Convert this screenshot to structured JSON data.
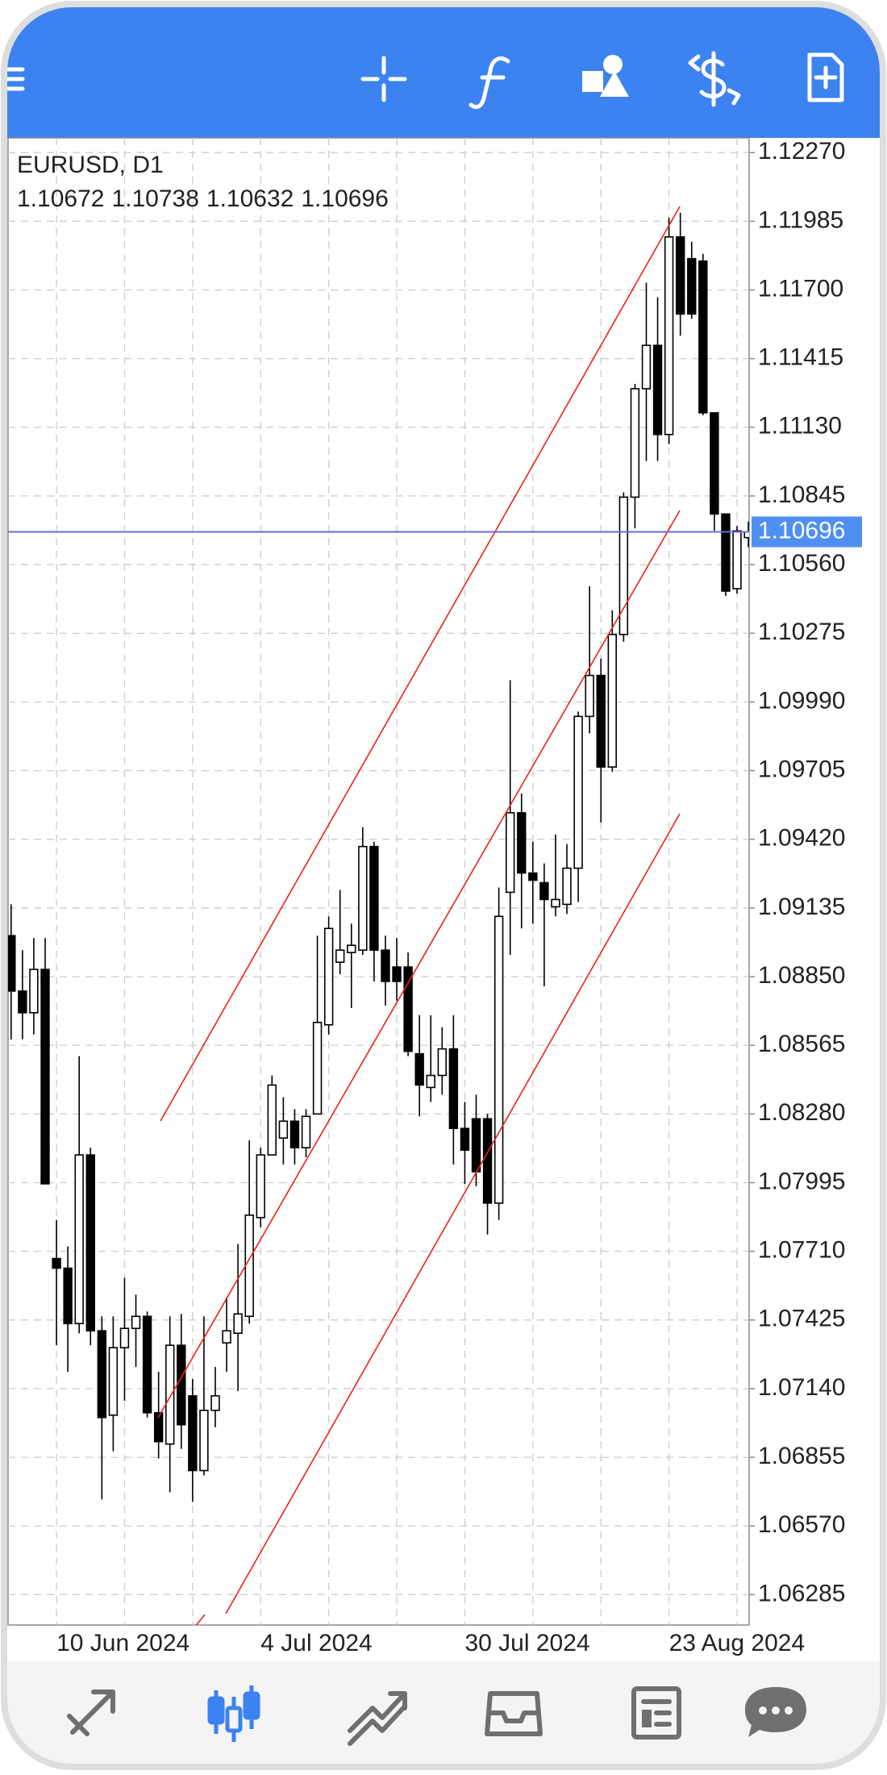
{
  "chart_data": {
    "type": "candlestick",
    "title": "EURUSD, D1",
    "categories": [
      null,
      null,
      null,
      null,
      "10 Jun 2024",
      null,
      null,
      null,
      null,
      null,
      null,
      null,
      null,
      null,
      null,
      null,
      null,
      null,
      null,
      null,
      null,
      null,
      "4 Jul 2024",
      null,
      null,
      null,
      null,
      null,
      null,
      null,
      null,
      null,
      null,
      null,
      null,
      null,
      null,
      null,
      null,
      null,
      "30 Jul 2024",
      null,
      null,
      null,
      null,
      null,
      null,
      null,
      null,
      null,
      null,
      null,
      null,
      null,
      null,
      null,
      null,
      null,
      "23 Aug 2024",
      null,
      null,
      null,
      null,
      null,
      null,
      null
    ],
    "open": [
      1.0902,
      1.0879,
      1.087,
      1.0888,
      1.0768,
      1.0764,
      1.0741,
      1.0811,
      1.0738,
      1.0703,
      1.0731,
      1.0739,
      1.0744,
      1.0704,
      1.0691,
      1.0732,
      1.0711,
      1.068,
      1.0705,
      1.0733,
      1.0737,
      1.0744,
      1.0785,
      1.0811,
      1.0818,
      1.0825,
      1.0814,
      1.0828,
      1.0865,
      1.0891,
      1.0895,
      1.0896,
      1.0939,
      1.0896,
      1.0889,
      1.0889,
      1.0853,
      1.0839,
      1.0844,
      1.0855,
      1.0822,
      1.0826,
      1.0826,
      1.0791,
      1.092,
      1.0953,
      1.0928,
      1.0924,
      1.0914,
      1.0915,
      1.093,
      1.0993,
      1.101,
      1.0972,
      1.1027,
      1.1084,
      1.1129,
      1.1147,
      1.111,
      1.1192,
      1.1183,
      1.1182,
      1.1119,
      1.1077,
      1.1046,
      1.10672
    ],
    "high": [
      1.0915,
      1.0896,
      1.0901,
      1.0901,
      1.0784,
      1.0773,
      1.0852,
      1.0814,
      1.0744,
      1.0744,
      1.076,
      1.0753,
      1.0746,
      1.0721,
      1.0744,
      1.0745,
      1.0718,
      1.0744,
      1.0723,
      1.0752,
      1.0774,
      1.0817,
      1.0814,
      1.0844,
      1.0835,
      1.083,
      1.083,
      1.0902,
      1.091,
      1.0921,
      1.0907,
      1.0947,
      1.0941,
      1.0902,
      1.0901,
      1.0895,
      1.0869,
      1.0869,
      1.0864,
      1.0869,
      1.0833,
      1.0836,
      1.0828,
      1.0922,
      1.1008,
      1.0961,
      1.0941,
      1.0932,
      1.0944,
      1.094,
      1.0995,
      1.1047,
      1.1017,
      1.1037,
      1.1086,
      1.1131,
      1.1173,
      1.1167,
      1.12,
      1.1202,
      1.119,
      1.1185,
      1.1119,
      1.1077,
      1.1072,
      1.10738
    ],
    "low": [
      1.0859,
      1.0859,
      1.0861,
      1.0799,
      1.0732,
      1.0721,
      1.0737,
      1.0732,
      1.0668,
      1.0688,
      1.0709,
      1.0723,
      1.0702,
      1.0685,
      1.0671,
      1.0689,
      1.0667,
      1.0678,
      1.0698,
      1.0721,
      1.0713,
      1.0741,
      1.0781,
      1.0811,
      1.0807,
      1.0807,
      1.081,
      1.0828,
      1.0861,
      1.0886,
      1.0872,
      1.0894,
      1.0883,
      1.0873,
      1.0875,
      1.0852,
      1.0827,
      1.0833,
      1.0836,
      1.0807,
      1.0799,
      1.0798,
      1.0778,
      1.0784,
      1.0894,
      1.0905,
      1.0907,
      1.0881,
      1.091,
      1.0911,
      1.0916,
      1.0986,
      1.0949,
      1.097,
      1.1024,
      1.1071,
      1.1099,
      1.1099,
      1.1106,
      1.1151,
      1.1158,
      1.1118,
      1.107,
      1.1043,
      1.1044,
      1.10632
    ],
    "close": [
      1.0879,
      1.087,
      1.0888,
      1.0799,
      1.0764,
      1.0741,
      1.0811,
      1.0738,
      1.0702,
      1.0731,
      1.0739,
      1.0744,
      1.0704,
      1.0692,
      1.0732,
      1.0699,
      1.068,
      1.0705,
      1.0711,
      1.0738,
      1.0745,
      1.0786,
      1.0811,
      1.084,
      1.0825,
      1.0814,
      1.0827,
      1.0866,
      1.0905,
      1.0896,
      1.0898,
      1.0939,
      1.0896,
      1.0883,
      1.0883,
      1.0854,
      1.084,
      1.0844,
      1.0855,
      1.0822,
      1.0813,
      1.0804,
      1.0791,
      1.091,
      1.0953,
      1.0928,
      1.0925,
      1.0917,
      1.0917,
      1.093,
      1.0993,
      1.101,
      1.0972,
      1.1027,
      1.1084,
      1.1129,
      1.1147,
      1.111,
      1.1192,
      1.116,
      1.116,
      1.1119,
      1.1077,
      1.1045,
      1.107,
      1.10696
    ],
    "ylim": [
      1.06159,
      1.12331
    ],
    "yticks": [
      {
        "value": 1.1227,
        "label": "1.12270"
      },
      1.11985,
      {
        "value": 1.117,
        "label": "1.11700"
      },
      1.11415,
      {
        "value": 1.1113,
        "label": "1.11130"
      },
      1.10845,
      {
        "value": 1.1056,
        "label": "1.10560"
      },
      1.10275,
      {
        "value": 1.0999,
        "label": "1.09990"
      },
      1.09705,
      {
        "value": 1.0942,
        "label": "1.09420"
      },
      1.09135,
      {
        "value": 1.0885,
        "label": "1.08850"
      },
      1.08565,
      {
        "value": 1.0828,
        "label": "1.08280"
      },
      1.07995,
      {
        "value": 1.0771,
        "label": "1.07710"
      },
      1.07425,
      {
        "value": 1.0714,
        "label": "1.07140"
      },
      1.06855,
      {
        "value": 1.0657,
        "label": "1.06570"
      },
      1.06285
    ],
    "grid": true,
    "up_color": "#ffffff",
    "down_color": "#000000",
    "price_line_color": "#6b6bd2"
  }
}
